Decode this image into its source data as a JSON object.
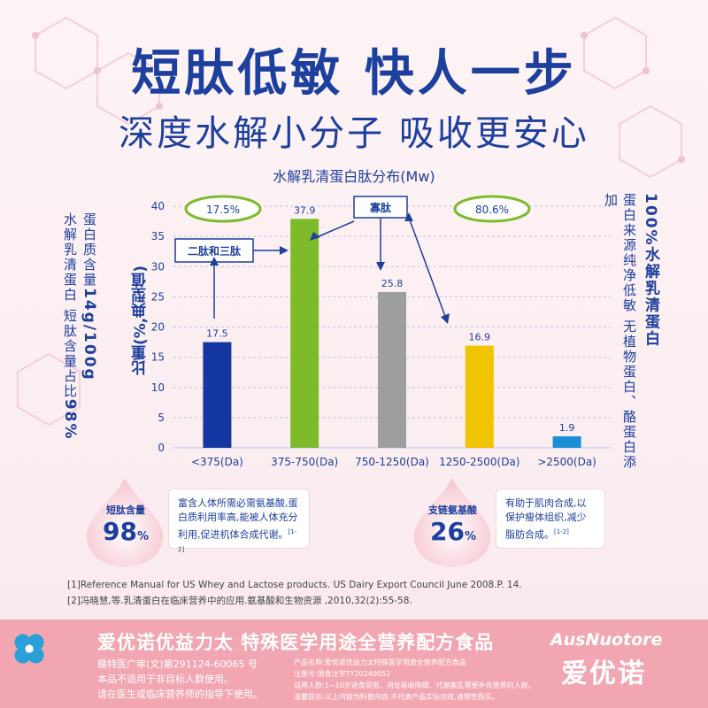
{
  "header": {
    "title": "短肽低敏 快人一步",
    "subtitle": "深度水解小分子 吸收更安心"
  },
  "left_side": {
    "col1_prefix": "蛋白质含量",
    "col1_value": "14g/100g",
    "col2_prefix": "水解乳清蛋白 短肽含量占比",
    "col2_value": "98%"
  },
  "right_side": {
    "col1": "100%水解乳清蛋白",
    "col2": "蛋白来源纯净低敏 无植物蛋白、酪蛋白添加"
  },
  "chart_data": {
    "type": "bar",
    "title": "水解乳清蛋白肽分布(Mw)",
    "ylabel": "比重(%,典型值)",
    "ylim": [
      0,
      40
    ],
    "yticks": [
      "0",
      "5",
      "10",
      "15",
      "20",
      "25",
      "30",
      "35",
      "40"
    ],
    "categories": [
      "<375(Da)",
      "375-750(Da)",
      "750-1250(Da)",
      "1250-2500(Da)",
      ">2500(Da)"
    ],
    "values": [
      17.5,
      37.9,
      25.8,
      16.9,
      1.9
    ],
    "value_labels": [
      "17.5",
      "37.9",
      "25.8",
      "16.9",
      "1.9"
    ],
    "colors": [
      "#1436a0",
      "#7dbb2a",
      "#9e9e9e",
      "#f2c400",
      "#1a8fd8"
    ],
    "annotations": {
      "ellipse_left": "17.5%",
      "ellipse_right": "80.6%",
      "box_left": "二肽和三肽",
      "box_right": "寡肽"
    }
  },
  "stats": [
    {
      "label": "短肽含量",
      "value": "98",
      "unit": "%",
      "desc_l1": "富含人体所需必需氨基酸,蛋",
      "desc_l2": "白质利用率高,能被人体充分",
      "desc_l3": "利用,促进机体合成代谢。",
      "ref": "[1-2]"
    },
    {
      "label": "支链氨基酸",
      "value": "26",
      "unit": "%",
      "desc_l1": "有助于肌肉合成,以",
      "desc_l2": "保护瘦体组织,减少",
      "desc_l3": "脂肪合成。",
      "ref": "[1-2]"
    }
  ],
  "references": [
    "[1]Reference Manual for US Whey and Lactose products. US Dairy Export Council June 2008.P. 14.",
    "[2]冯晓慧,等.乳清蛋白在临床营养中的应用.氨基酸和生物资源 ,2010,32(2):55-58."
  ],
  "footer": {
    "title": "爱优诺优益力太 特殊医学用途全营养配方食品",
    "left_l1": "赣特医广审(文)第291124-60065 号",
    "left_l2": "本品不适用于非目标人群使用。",
    "left_l3": "请在医生或临床营养师的指导下使用。",
    "mid_l1": "产品名称:爱优诺优益力太特殊医学用途全营养配方食品",
    "mid_l2": "注册号:国食注字TY20240052",
    "mid_l3": "适用人群:1~10岁进食受限、消化吸收障碍、代谢紊乱需要补充营养的人群。",
    "mid_l4": "温馨提示:以上内容为科普内容,不代表产品实际功效,请理性购买。",
    "brand_en": "AusNuotore",
    "brand_cn": "爱优诺"
  },
  "colors": {
    "primary_blue": "#1d3f9e",
    "footer_pink": "#f2a6b1",
    "ellipse_green": "#7dbb2a"
  }
}
